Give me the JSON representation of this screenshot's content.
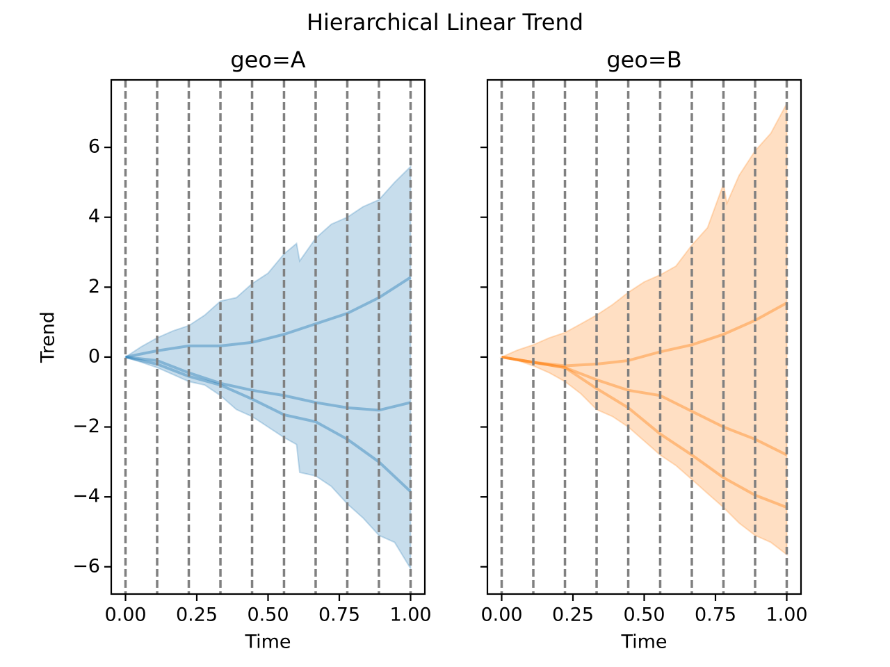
{
  "title": "Hierarchical Linear Trend",
  "chart_data": [
    {
      "type": "line",
      "title": "geo=A",
      "xlabel": "Time",
      "ylabel": "Trend",
      "xlim": [
        -0.05,
        1.05
      ],
      "ylim": [
        -6.78,
        7.93
      ],
      "xticks": [
        {
          "value": 0,
          "label": "0.00"
        },
        0.25,
        {
          "value": 0.5,
          "label": "0.50"
        },
        0.75,
        {
          "value": 1,
          "label": "1.00"
        }
      ],
      "yticks": [
        {
          "value": -6,
          "label": "−6"
        },
        {
          "value": -4,
          "label": "−4"
        },
        {
          "value": -2,
          "label": "−2"
        },
        0,
        2,
        4,
        6
      ],
      "x": [
        0,
        0.111,
        0.222,
        0.333,
        0.444,
        0.556,
        0.667,
        0.778,
        0.889,
        1
      ],
      "interval": {
        "color": "#1f77b4",
        "x": [
          0,
          0.056,
          0.111,
          0.167,
          0.222,
          0.278,
          0.333,
          0.389,
          0.444,
          0.5,
          0.556,
          0.6,
          0.611,
          0.667,
          0.722,
          0.778,
          0.833,
          0.889,
          0.944,
          1
        ],
        "upper": [
          0,
          0.3,
          0.55,
          0.75,
          0.9,
          1.2,
          1.6,
          1.7,
          2.1,
          2.4,
          2.95,
          3.25,
          2.75,
          3.4,
          3.8,
          4.0,
          4.3,
          4.5,
          5.0,
          5.45
        ],
        "lower": [
          0,
          -0.15,
          -0.3,
          -0.5,
          -0.7,
          -0.8,
          -1.1,
          -1.5,
          -1.7,
          -2.0,
          -2.3,
          -2.5,
          -3.3,
          -3.4,
          -3.7,
          -4.2,
          -4.6,
          -5.1,
          -5.3,
          -6.05
        ]
      },
      "series": [
        {
          "color": "#1f77b4",
          "values": [
            0,
            0.18,
            0.32,
            0.32,
            0.42,
            0.65,
            0.95,
            1.25,
            1.7,
            2.28
          ]
        },
        {
          "color": "#1f77b4",
          "values": [
            0,
            -0.1,
            -0.45,
            -0.75,
            -0.95,
            -1.1,
            -1.3,
            -1.45,
            -1.52,
            -1.3
          ]
        },
        {
          "color": "#1f77b4",
          "values": [
            0,
            -0.2,
            -0.55,
            -0.8,
            -1.2,
            -1.65,
            -1.85,
            -2.35,
            -3.0,
            -3.85
          ]
        }
      ]
    },
    {
      "type": "line",
      "title": "geo=B",
      "xlabel": "Time",
      "xlim": [
        -0.05,
        1.05
      ],
      "ylim": [
        -6.78,
        7.93
      ],
      "xticks": [
        {
          "value": 0,
          "label": "0.00"
        },
        0.25,
        {
          "value": 0.5,
          "label": "0.50"
        },
        0.75,
        {
          "value": 1,
          "label": "1.00"
        }
      ],
      "x": [
        0,
        0.111,
        0.222,
        0.333,
        0.444,
        0.556,
        0.667,
        0.778,
        0.889,
        1
      ],
      "interval": {
        "color": "#ff7f0e",
        "x": [
          0,
          0.056,
          0.111,
          0.167,
          0.222,
          0.278,
          0.333,
          0.389,
          0.444,
          0.5,
          0.556,
          0.611,
          0.667,
          0.722,
          0.778,
          0.79,
          0.833,
          0.889,
          0.944,
          1
        ],
        "upper": [
          0,
          0.2,
          0.35,
          0.55,
          0.7,
          0.95,
          1.2,
          1.5,
          1.85,
          2.15,
          2.35,
          2.6,
          3.2,
          3.7,
          4.95,
          4.4,
          5.2,
          5.9,
          6.4,
          7.25
        ],
        "lower": [
          0,
          -0.1,
          -0.25,
          -0.45,
          -0.7,
          -1.05,
          -1.5,
          -1.7,
          -2.0,
          -2.4,
          -2.8,
          -3.1,
          -3.5,
          -3.9,
          -4.3,
          -4.4,
          -4.75,
          -5.1,
          -5.3,
          -5.65
        ]
      },
      "series": [
        {
          "color": "#ff7f0e",
          "values": [
            0,
            -0.15,
            -0.25,
            -0.2,
            -0.1,
            0.15,
            0.35,
            0.65,
            1.05,
            1.55
          ]
        },
        {
          "color": "#ff7f0e",
          "values": [
            0,
            -0.15,
            -0.3,
            -0.65,
            -0.95,
            -1.1,
            -1.55,
            -2.0,
            -2.35,
            -2.8
          ]
        },
        {
          "color": "#ff7f0e",
          "values": [
            0,
            -0.15,
            -0.3,
            -0.9,
            -1.45,
            -2.2,
            -2.8,
            -3.45,
            -3.95,
            -4.3
          ]
        }
      ]
    }
  ]
}
